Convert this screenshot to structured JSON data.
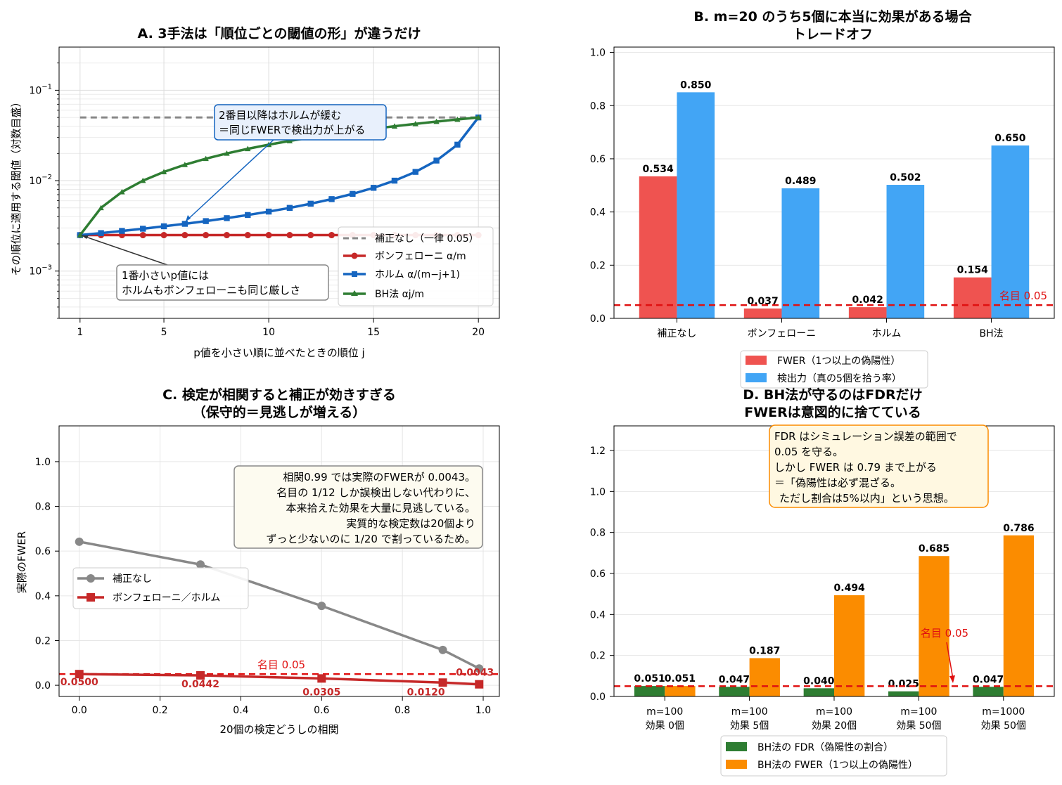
{
  "colors": {
    "grey": "#888888",
    "red": "#c62828",
    "blue": "#1565c0",
    "green": "#2e7d32",
    "bar_red": "#ef5350",
    "bar_blue": "#42a5f5",
    "bar_green": "#2e7d32",
    "bar_orange": "#fb8c00",
    "nominal": "#e01010"
  },
  "chart_data": [
    {
      "id": "A",
      "type": "line",
      "title": "A. 3手法は「順位ごとの閾値の形」が違うだけ",
      "xlabel": "p値を小さい順に並べたときの順位 j",
      "ylabel": "その順位に適用する閾値（対数目盛）",
      "yscale": "log",
      "xlim": [
        0,
        21
      ],
      "ylim": [
        0.0003,
        0.3
      ],
      "xticks": [
        1,
        5,
        10,
        15,
        20
      ],
      "yticks": [
        {
          "value": 0.001,
          "base": "10",
          "exp": "−3"
        },
        {
          "value": 0.01,
          "base": "10",
          "exp": "−2"
        },
        {
          "value": 0.1,
          "base": "10",
          "exp": "−1"
        }
      ],
      "grid": true,
      "legend_position": "lower-right",
      "series": [
        {
          "name": "補正なし（一律 0.05）",
          "style": "dashed",
          "color": "#888888",
          "x": [
            1,
            20
          ],
          "y": [
            0.05,
            0.05
          ]
        },
        {
          "name": "ボンフェローニ α/m",
          "marker": "circle",
          "color": "#c62828",
          "x": [
            1,
            2,
            3,
            4,
            5,
            6,
            7,
            8,
            9,
            10,
            11,
            12,
            13,
            14,
            15,
            16,
            17,
            18,
            19,
            20
          ],
          "y": [
            0.0025,
            0.0025,
            0.0025,
            0.0025,
            0.0025,
            0.0025,
            0.0025,
            0.0025,
            0.0025,
            0.0025,
            0.0025,
            0.0025,
            0.0025,
            0.0025,
            0.0025,
            0.0025,
            0.0025,
            0.0025,
            0.0025,
            0.0025
          ]
        },
        {
          "name": "ホルム α/(m−j+1)",
          "marker": "square",
          "color": "#1565c0",
          "x": [
            1,
            2,
            3,
            4,
            5,
            6,
            7,
            8,
            9,
            10,
            11,
            12,
            13,
            14,
            15,
            16,
            17,
            18,
            19,
            20
          ],
          "y": [
            0.0025,
            0.00263,
            0.00278,
            0.00294,
            0.00313,
            0.00333,
            0.00357,
            0.00385,
            0.00417,
            0.00455,
            0.005,
            0.00556,
            0.00625,
            0.00714,
            0.00833,
            0.01,
            0.0125,
            0.01667,
            0.025,
            0.05
          ]
        },
        {
          "name": "BH法 αj/m",
          "marker": "triangle",
          "color": "#2e7d32",
          "x": [
            1,
            2,
            3,
            4,
            5,
            6,
            7,
            8,
            9,
            10,
            11,
            12,
            13,
            14,
            15,
            16,
            17,
            18,
            19,
            20
          ],
          "y": [
            0.0025,
            0.005,
            0.0075,
            0.01,
            0.0125,
            0.015,
            0.0175,
            0.02,
            0.0225,
            0.025,
            0.0275,
            0.03,
            0.0325,
            0.035,
            0.0375,
            0.04,
            0.0425,
            0.045,
            0.0475,
            0.05
          ]
        }
      ],
      "annotations": [
        {
          "lines": [
            "2番目以降はホルムが緩む",
            "＝同じFWERで検出力が上がる"
          ]
        },
        {
          "lines": [
            "1番小さいp値には",
            "ホルムもボンフェローニも同じ厳しさ"
          ]
        }
      ]
    },
    {
      "id": "B",
      "type": "bar",
      "title_lines": [
        "B. m=20 のうち5個に本当に効果がある場合",
        "トレードオフ"
      ],
      "categories": [
        "補正なし",
        "ボンフェローニ",
        "ホルム",
        "BH法"
      ],
      "series": [
        {
          "name": "FWER（1つ以上の偽陽性）",
          "values": [
            0.534,
            0.037,
            0.042,
            0.154
          ],
          "labels": [
            "0.534",
            "0.037",
            "0.042",
            "0.154"
          ]
        },
        {
          "name": "検出力（真の5個を拾う率）",
          "values": [
            0.85,
            0.489,
            0.502,
            0.65
          ],
          "labels": [
            "0.850",
            "0.489",
            "0.502",
            "0.650"
          ]
        }
      ],
      "ylim": [
        0,
        1.02
      ],
      "yticks": [
        "0.0",
        "0.2",
        "0.4",
        "0.6",
        "0.8",
        "1.0"
      ],
      "nominal": {
        "value": 0.05,
        "label": "名目 0.05"
      },
      "legend_position": "below"
    },
    {
      "id": "C",
      "type": "line",
      "title_lines": [
        "C. 検定が相関すると補正が効きすぎる",
        "（保守的＝見逃しが増える）"
      ],
      "xlabel": "20個の検定どうしの相関",
      "ylabel": "実際のFWER",
      "xlim": [
        -0.05,
        1.04
      ],
      "ylim": [
        -0.05,
        1.16
      ],
      "xticks": [
        "0.0",
        "0.2",
        "0.4",
        "0.6",
        "0.8",
        "1.0"
      ],
      "yticks": [
        "0.0",
        "0.2",
        "0.4",
        "0.6",
        "0.8",
        "1.0"
      ],
      "series": [
        {
          "name": "補正なし",
          "marker": "circle",
          "color": "#888888",
          "x": [
            0,
            0.3,
            0.6,
            0.9,
            0.99
          ],
          "y": [
            0.642,
            0.54,
            0.355,
            0.158,
            0.075
          ]
        },
        {
          "name": "ボンフェローニ／ホルム",
          "marker": "square",
          "color": "#c62828",
          "x": [
            0,
            0.3,
            0.6,
            0.9,
            0.99
          ],
          "y": [
            0.05,
            0.0442,
            0.0305,
            0.012,
            0.0043
          ],
          "labels": [
            "0.0500",
            "0.0442",
            "0.0305",
            "0.0120",
            "0.0043"
          ]
        }
      ],
      "nominal": {
        "value": 0.05,
        "label": "名目 0.05"
      },
      "legend_position": "center-left",
      "annotation": {
        "lines": [
          "相関0.99 では実際のFWERが 0.0043。",
          "名目の 1/12 しか誤検出しない代わりに、",
          "本来拾えた効果を大量に見逃している。",
          "実質的な検定数は20個より",
          "ずっと少ないのに 1/20 で割っているため。"
        ]
      }
    },
    {
      "id": "D",
      "type": "bar",
      "title_lines": [
        "D. BH法が守るのはFDRだけ",
        "FWERは意図的に捨てている"
      ],
      "categories": [
        [
          "m=100",
          "効果 0個"
        ],
        [
          "m=100",
          "効果 5個"
        ],
        [
          "m=100",
          "効果 20個"
        ],
        [
          "m=100",
          "効果 50個"
        ],
        [
          "m=1000",
          "効果 50個"
        ]
      ],
      "series": [
        {
          "name": "BH法の FDR（偽陽性の割合）",
          "values": [
            0.051,
            0.047,
            0.04,
            0.025,
            0.047
          ],
          "labels": [
            "0.051",
            "0.047",
            "0.040",
            "0.025",
            "0.047"
          ]
        },
        {
          "name": "BH法の FWER（1つ以上の偽陽性）",
          "values": [
            0.051,
            0.187,
            0.494,
            0.685,
            0.786
          ],
          "labels": [
            "0.051",
            "0.187",
            "0.494",
            "0.685",
            "0.786"
          ]
        }
      ],
      "ylim": [
        0,
        1.32
      ],
      "yticks": [
        "0.0",
        "0.2",
        "0.4",
        "0.6",
        "0.8",
        "1.0",
        "1.2"
      ],
      "nominal": {
        "value": 0.05,
        "label": "名目 0.05"
      },
      "legend_position": "below",
      "annotation": {
        "lines": [
          "FDR はシミュレーション誤差の範囲で",
          "0.05 を守る。",
          "しかし FWER は 0.79 まで上がる",
          "＝「偽陽性は必ず混ざる。",
          "ただし割合は5%以内」という思想。"
        ]
      }
    }
  ]
}
